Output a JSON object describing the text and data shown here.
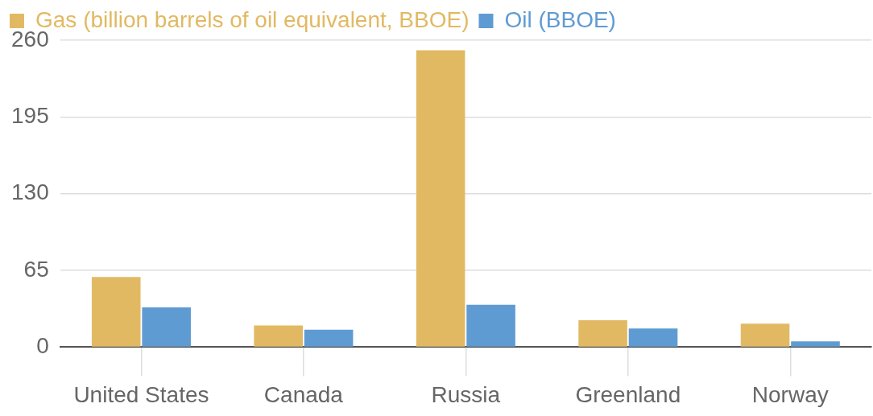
{
  "chart_data": {
    "type": "bar",
    "categories": [
      "United States",
      "Canada",
      "Russia",
      "Greenland",
      "Norway"
    ],
    "series": [
      {
        "name": "Gas (billion barrels of oil equivalent, BBOE)",
        "color": "#e2b963",
        "values": [
          59.4,
          18.3,
          251.5,
          22.7,
          19.8
        ]
      },
      {
        "name": "Oil (BBOE)",
        "color": "#5f9bd3",
        "values": [
          33.6,
          14.7,
          35.9,
          15.7,
          4.9
        ]
      }
    ],
    "ylim": [
      0,
      260
    ],
    "yticks": [
      0,
      65,
      130,
      195,
      260
    ],
    "grid": "y",
    "legend": "top left"
  }
}
